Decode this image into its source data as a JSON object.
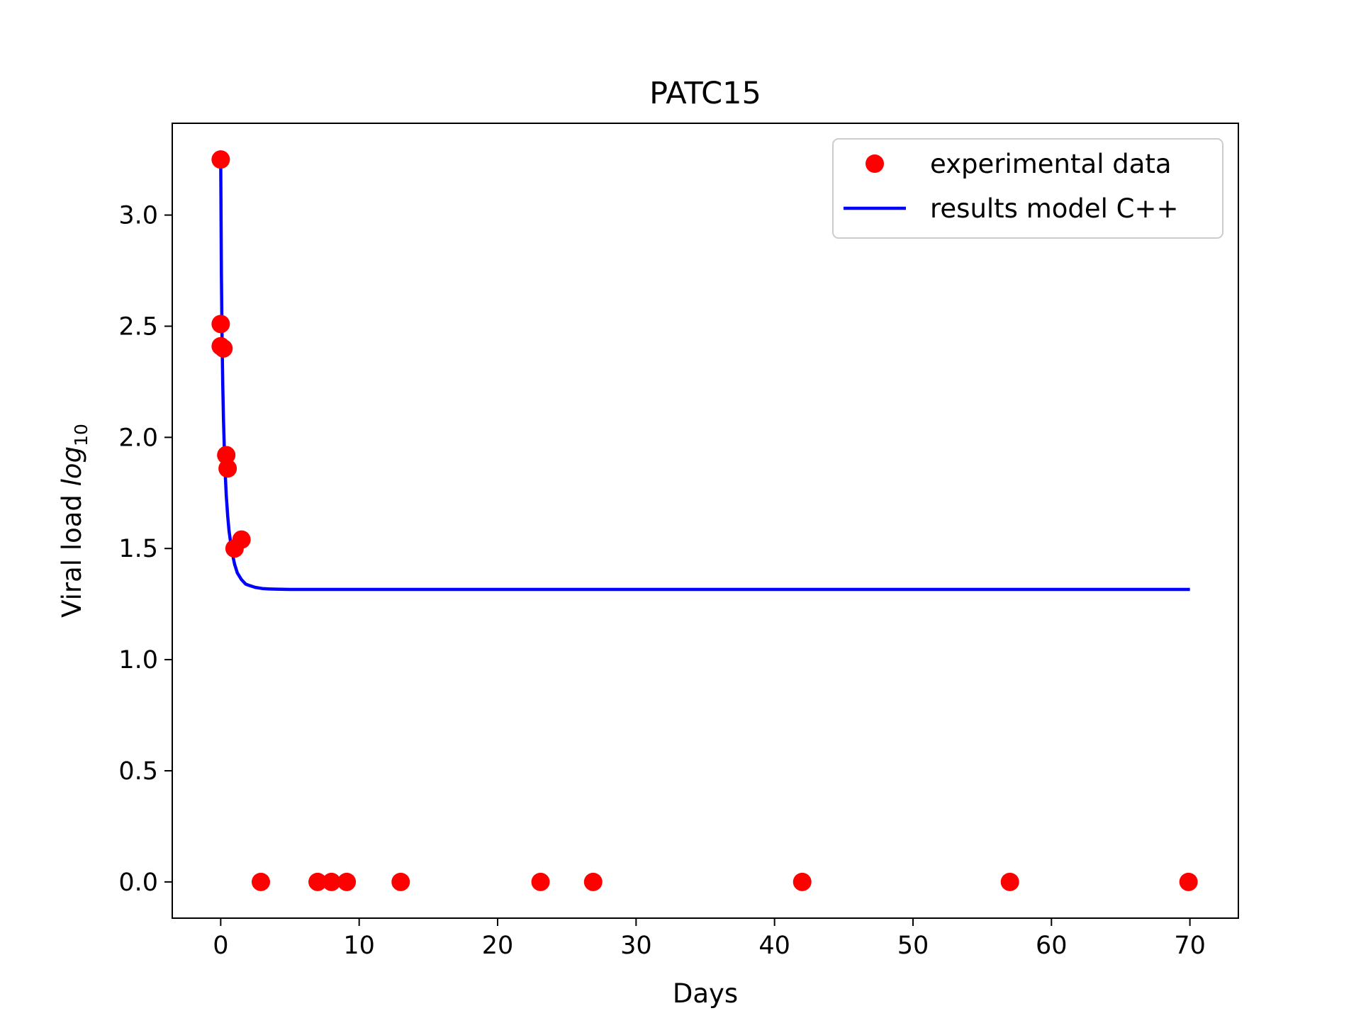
{
  "chart_data": {
    "type": "scatter",
    "title": "PATC15",
    "xlabel": "Days",
    "ylabel": {
      "main": "Viral load ",
      "italic": "log",
      "subscript": "10"
    },
    "xlim": [
      -3.5,
      73.5
    ],
    "ylim": [
      -0.163,
      3.413
    ],
    "x_ticks": [
      0,
      10,
      20,
      30,
      40,
      50,
      60,
      70
    ],
    "x_tick_labels": [
      "0",
      "10",
      "20",
      "30",
      "40",
      "50",
      "60",
      "70"
    ],
    "y_ticks": [
      0.0,
      0.5,
      1.0,
      1.5,
      2.0,
      2.5,
      3.0
    ],
    "y_tick_labels": [
      "0.0",
      "0.5",
      "1.0",
      "1.5",
      "2.0",
      "2.5",
      "3.0"
    ],
    "grid": false,
    "legend_position": "top-right",
    "series": [
      {
        "name": "experimental data",
        "kind": "scatter",
        "color": "#ff0000",
        "x": [
          0.0,
          0.0,
          0.0,
          0.2,
          0.4,
          0.5,
          1.0,
          1.5,
          2.9,
          7.0,
          8.0,
          9.1,
          13.0,
          23.1,
          26.9,
          42.0,
          57.0,
          69.9
        ],
        "y": [
          3.25,
          2.51,
          2.41,
          2.4,
          1.92,
          1.86,
          1.5,
          1.54,
          0.0,
          0.0,
          0.0,
          0.0,
          0.0,
          0.0,
          0.0,
          0.0,
          0.0,
          0.0
        ]
      },
      {
        "name": "results model C++",
        "kind": "line",
        "color": "#0000ff",
        "x": [
          0.0,
          0.05,
          0.1,
          0.15,
          0.2,
          0.3,
          0.4,
          0.5,
          0.6,
          0.8,
          1.0,
          1.2,
          1.5,
          1.8,
          2.0,
          2.5,
          3.0,
          3.5,
          4.0,
          5.0,
          6.0,
          8.0,
          10.0,
          20.0,
          30.0,
          40.0,
          50.0,
          60.0,
          70.0
        ],
        "y": [
          3.25,
          2.73,
          2.43,
          2.23,
          2.08,
          1.87,
          1.74,
          1.65,
          1.58,
          1.49,
          1.43,
          1.39,
          1.36,
          1.34,
          1.335,
          1.325,
          1.32,
          1.318,
          1.317,
          1.316,
          1.316,
          1.316,
          1.316,
          1.316,
          1.316,
          1.316,
          1.316,
          1.316,
          1.316
        ]
      }
    ]
  }
}
